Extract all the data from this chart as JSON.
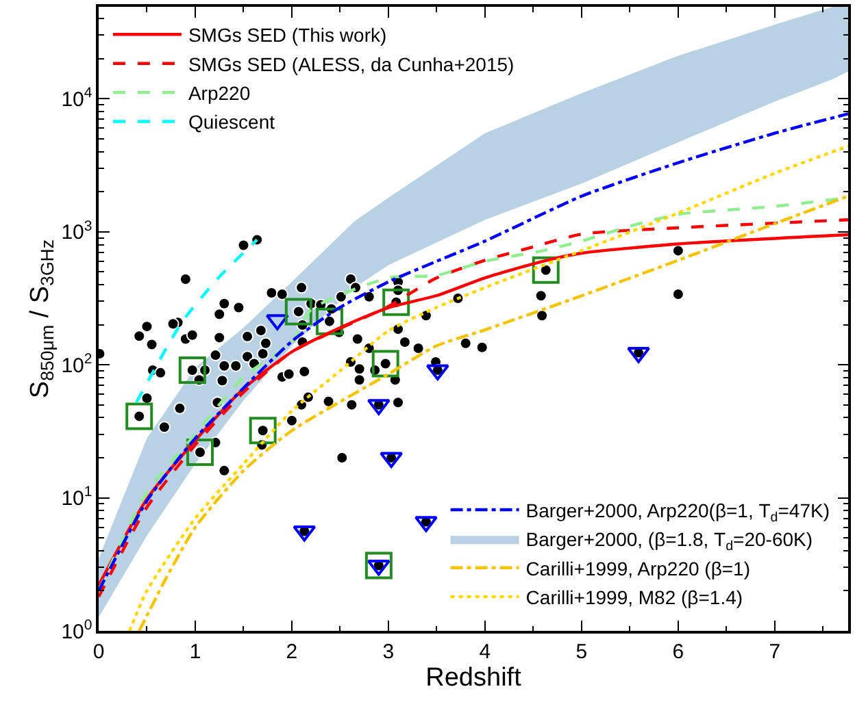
{
  "chart_data": {
    "type": "scatter",
    "xlabel": "Redshift",
    "ylabel": "S$_{850μm}$ / S$_{3GHz}$",
    "xlim": [
      0,
      7.76
    ],
    "xticks": [
      0,
      1,
      2,
      3,
      4,
      5,
      6,
      7
    ],
    "ylim": [
      1,
      49000
    ],
    "log": "y",
    "yticks": [
      {
        "value": 1,
        "label": "10$^{0}$"
      },
      {
        "value": 10,
        "label": "10$^{1}$"
      },
      {
        "value": 100,
        "label": "10$^{2}$"
      },
      {
        "value": 1000,
        "label": "10$^{3}$"
      },
      {
        "value": 10000,
        "label": "10$^{4}$"
      }
    ],
    "legend": [
      "top left",
      "bottom right"
    ],
    "series": [
      {
        "name": "SMGs SED (This work)",
        "type": "line",
        "line_style": "solid",
        "color": "#ff0000",
        "x": [
          0,
          0.5,
          1,
          1.5,
          2,
          2.5,
          3,
          3.5,
          4,
          4.6,
          5,
          6,
          7.76
        ],
        "values": [
          2.2,
          9.8,
          27,
          66,
          125,
          190,
          269,
          331,
          450,
          600,
          690,
          810,
          950
        ]
      },
      {
        "name": "SMGs SED (ALESS, da Cunha+2015)",
        "type": "line",
        "line_style": "dashed",
        "color": "#ff0000",
        "x": [
          0,
          0.5,
          1,
          1.5,
          2,
          3,
          3.5,
          4,
          4.5,
          5,
          6,
          7.76
        ],
        "values": [
          1.8,
          8.5,
          25,
          62,
          125,
          275,
          450,
          610,
          770,
          960,
          1070,
          1230
        ]
      },
      {
        "name": "Arp220",
        "type": "line",
        "line_style": "dashed",
        "color": "#90ee90",
        "x": [
          0,
          0.5,
          1,
          1.5,
          2,
          2.2,
          3,
          3.5,
          4,
          4.6,
          5,
          5.5,
          6,
          7,
          7.76
        ],
        "values": [
          2.0,
          11,
          30,
          81,
          148,
          260,
          450,
          470,
          600,
          720,
          850,
          1100,
          1350,
          1550,
          1800
        ]
      },
      {
        "name": "Quiescent",
        "type": "line",
        "line_style": "dashed",
        "color": "#00ffff",
        "x": [
          0.39,
          0.86,
          1.24,
          1.64
        ],
        "values": [
          52,
          208,
          450,
          870
        ]
      },
      {
        "name": "Barger+2000, Arp220(β=1, T$_{d}$=47K)",
        "type": "line",
        "line_style": "dashdot",
        "color": "#0000ff",
        "x": [
          0,
          0.5,
          1,
          2,
          2.5,
          3,
          3.5,
          4,
          5,
          6,
          7,
          7.76
        ],
        "values": [
          2.0,
          9.5,
          28,
          150,
          270,
          420,
          600,
          850,
          1850,
          3300,
          5500,
          7700
        ]
      },
      {
        "name": "Barger+2000, (β=1.8, T$_{d}$=20-60K)",
        "type": "line",
        "color": "#b8d2e4",
        "x": [
          0,
          0.5,
          1,
          1.5,
          2,
          2.65,
          3,
          4,
          5,
          6,
          7,
          7.6,
          7.76
        ],
        "values": [
          null,
          null,
          null,
          null,
          null,
          null,
          null,
          null,
          null,
          null,
          null,
          null,
          null
        ],
        "lower": [
          1.26,
          5.2,
          18,
          54,
          139,
          380,
          560,
          1230,
          2300,
          4700,
          9500,
          14000,
          16000
        ],
        "upper": [
          3.5,
          28,
          95,
          190,
          420,
          1200,
          1800,
          5500,
          11000,
          21000,
          36000,
          49000,
          49000
        ]
      },
      {
        "name": "Carilli+1999, Arp220 (β=1)",
        "type": "line",
        "line_style": "dashdot",
        "color": "#f5c400",
        "x": [
          0.42,
          0.7,
          1,
          1.5,
          2,
          3,
          3.5,
          4,
          5,
          6,
          7,
          7.76
        ],
        "values": [
          1,
          2.5,
          6,
          16,
          32,
          85,
          139,
          183,
          330,
          610,
          1150,
          1850
        ]
      },
      {
        "name": "Carilli+1999, M82 (β=1.4)",
        "type": "line",
        "line_style": "dotted",
        "color": "#ffd700",
        "x": [
          0.32,
          0.5,
          1,
          1.5,
          2,
          2.5,
          3,
          3.5,
          4,
          5,
          6,
          7,
          7.76
        ],
        "values": [
          1,
          2,
          7,
          18,
          45,
          90,
          180,
          270,
          380,
          720,
          1380,
          2750,
          4400
        ]
      },
      {
        "marker": "circle",
        "color": "#000000",
        "x": [
          0.01,
          1.64,
          1.5,
          0.9,
          0.42,
          0.5,
          0.55,
          0.82,
          0.77,
          0.9,
          0.97,
          0.56,
          0.64,
          0.5,
          0.42,
          0.68,
          0.84,
          0.97,
          1.04,
          1.1,
          1.05,
          1.21,
          1.3,
          1.21,
          1.25,
          1.25,
          1.3,
          1.45,
          1.3,
          1.28,
          1.23,
          1.42,
          1.54,
          1.54,
          1.61,
          1.7,
          1.68,
          1.73,
          1.79,
          1.9,
          1.7,
          1.69,
          1.9,
          1.97,
          2.0,
          2.1,
          2.17,
          2.13,
          2.1,
          2.07,
          2.11,
          2.11,
          2.2,
          2.3,
          2.39,
          2.41,
          2.49,
          2.51,
          2.61,
          2.66,
          2.68,
          2.61,
          2.7,
          2.7,
          2.8,
          2.8,
          2.62,
          2.38,
          2.52,
          2.97,
          2.86,
          3.07,
          3.1,
          3.1,
          3.1,
          3.1,
          3.17,
          3.08,
          3.31,
          3.39,
          3.49,
          3.72,
          3.8,
          3.97,
          4.58,
          4.59,
          4.63,
          6.0,
          6.0,
          2.9,
          3.03,
          2.13,
          3.39,
          2.9,
          3.51,
          5.59
        ],
        "values": [
          121,
          870,
          790,
          440,
          164,
          194,
          142,
          208,
          203,
          156,
          167,
          91,
          87,
          56,
          41,
          34,
          47,
          91,
          77,
          91,
          22,
          26,
          16,
          118,
          160,
          240,
          288,
          269,
          98,
          76,
          52,
          98,
          115,
          163,
          102,
          121,
          181,
          145,
          347,
          339,
          32,
          25,
          81,
          85,
          38,
          50,
          57,
          89,
          380,
          251,
          199,
          148,
          288,
          282,
          212,
          263,
          175,
          324,
          440,
          380,
          156,
          105,
          93,
          77,
          133,
          324,
          50,
          53,
          20,
          102,
          91,
          77,
          52,
          418,
          363,
          185,
          148,
          295,
          133,
          234,
          105,
          316,
          145,
          135,
          330,
          234,
          515,
          720,
          339,
          50,
          20,
          5.6,
          6.6,
          3.1,
          91,
          123
        ]
      },
      {
        "marker": "triangle-down-open",
        "color": "#0000ff",
        "x": [
          1.85,
          2.9,
          3.03,
          2.13,
          3.39,
          2.9,
          3.51,
          5.59
        ],
        "values": [
          217,
          50,
          20,
          5.6,
          6.6,
          3.1,
          91,
          123
        ]
      },
      {
        "marker": "square-open",
        "color": "#228b22",
        "x": [
          0.42,
          0.97,
          1.05,
          1.7,
          2.07,
          2.39,
          2.97,
          3.08,
          4.63,
          2.9
        ],
        "values": [
          41,
          91,
          22,
          32,
          251,
          212,
          102,
          295,
          515,
          3.1
        ]
      }
    ]
  }
}
